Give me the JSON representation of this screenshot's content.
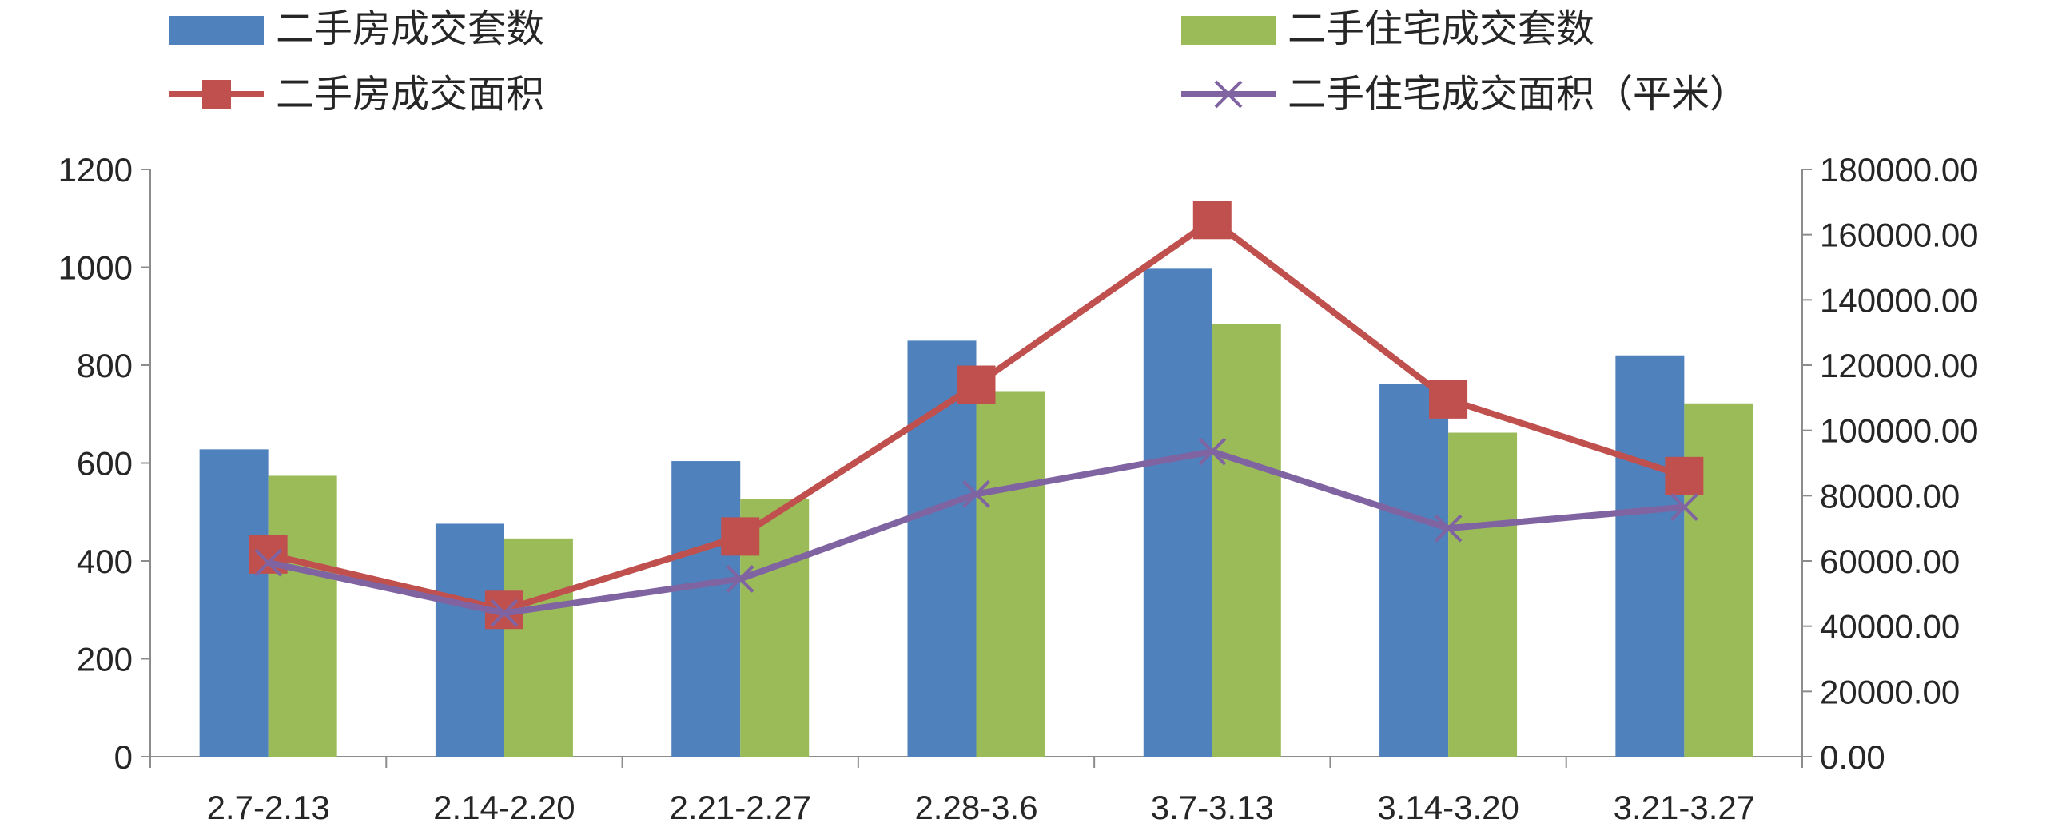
{
  "chart_data": {
    "type": "bar",
    "title": "",
    "xlabel": "",
    "ylabel": "",
    "categories": [
      "2.7-2.13",
      "2.14-2.20",
      "2.21-2.27",
      "2.28-3.6",
      "3.7-3.13",
      "3.14-3.20",
      "3.21-3.27"
    ],
    "ylim": [
      0,
      1200
    ],
    "y_ticks": [
      "0",
      "200",
      "400",
      "600",
      "800",
      "1000",
      "1200"
    ],
    "y2lim": [
      0,
      180000
    ],
    "y2_ticks": [
      "0.00",
      "20000.00",
      "40000.00",
      "60000.00",
      "80000.00",
      "100000.00",
      "120000.00",
      "140000.00",
      "160000.00",
      "180000.00"
    ],
    "grid": false,
    "legend_position": "top",
    "bar_series": [
      {
        "name": "二手房成交套数",
        "color": "#4f81bd",
        "axis": "left",
        "values": [
          628,
          476,
          604,
          850,
          997,
          762,
          820
        ]
      },
      {
        "name": "二手住宅成交套数",
        "color": "#9bbb59",
        "axis": "left",
        "values": [
          574,
          446,
          527,
          747,
          884,
          662,
          722
        ]
      }
    ],
    "line_series": [
      {
        "name": "二手房成交面积",
        "color": "#c0504d",
        "axis": "right",
        "marker": "square",
        "values": [
          62000,
          45000,
          67500,
          114000,
          164500,
          109500,
          86000
        ]
      },
      {
        "name": "二手住宅成交面积（平米）",
        "color": "#8064a2",
        "axis": "right",
        "marker": "x",
        "values": [
          59500,
          44000,
          54500,
          80500,
          93500,
          70000,
          76500
        ]
      }
    ]
  }
}
